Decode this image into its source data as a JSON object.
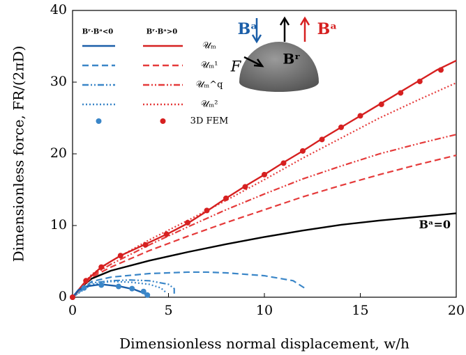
{
  "chart_data": {
    "type": "line",
    "xlabel": "Dimensionless normal displacement, w/h",
    "ylabel": "Dimensionless force, FR/(2πD)",
    "xlim": [
      0,
      20
    ],
    "ylim": [
      0,
      40
    ],
    "xticks": [
      0,
      5,
      10,
      15,
      20
    ],
    "yticks": [
      0,
      10,
      20,
      30,
      40
    ],
    "grid": false,
    "legend": {
      "position": "upper-left",
      "groups": [
        "Bʳ·Bᵃ<0",
        "Bʳ·Bᵃ>0"
      ]
    },
    "series": [
      {
        "name": "𝒰ₘ",
        "group": 1,
        "kind": "line",
        "style": "solid",
        "color": "#d62020",
        "x": [
          0,
          0.7,
          1.5,
          2.5,
          3.8,
          5,
          6,
          7,
          8,
          9,
          10,
          11,
          12,
          13,
          14,
          15,
          16,
          17,
          18,
          19,
          20
        ],
        "values": [
          0,
          2.3,
          4.2,
          5.8,
          7.4,
          8.9,
          10.3,
          12,
          13.8,
          15.5,
          17.1,
          18.8,
          20.4,
          22.1,
          23.7,
          25.3,
          26.9,
          28.5,
          30.1,
          31.7,
          33
        ]
      },
      {
        "name": "𝒰ₘ¹",
        "group": 1,
        "kind": "line",
        "style": "dashed",
        "color": "#e53a3a",
        "x": [
          0,
          1,
          2,
          4,
          6,
          8,
          10,
          12,
          14,
          16,
          18,
          20
        ],
        "values": [
          0,
          2.8,
          4.2,
          6.5,
          8.5,
          10.4,
          12.2,
          14,
          15.6,
          17.1,
          18.5,
          19.8
        ]
      },
      {
        "name": "𝒰ₘ^q",
        "group": 1,
        "kind": "line",
        "style": "dashdot",
        "color": "#e53a3a",
        "x": [
          0,
          1,
          2,
          4,
          6,
          8,
          10,
          12,
          14,
          16,
          18,
          20
        ],
        "values": [
          0,
          3,
          4.6,
          7.3,
          9.8,
          12.2,
          14.4,
          16.5,
          18.3,
          20,
          21.4,
          22.7
        ]
      },
      {
        "name": "𝒰ₘ²",
        "group": 1,
        "kind": "line",
        "style": "dotted",
        "color": "#e53a3a",
        "x": [
          0,
          1,
          2,
          4,
          6,
          8,
          10,
          12,
          14,
          16,
          18,
          20
        ],
        "values": [
          0,
          3.2,
          5,
          8,
          10.7,
          13.5,
          16.4,
          19.4,
          22.2,
          25,
          27.5,
          29.9
        ]
      },
      {
        "name": "3D FEM",
        "group": 1,
        "kind": "points",
        "color": "#d62020",
        "x": [
          0,
          0.7,
          1.5,
          2.5,
          3.8,
          4.9,
          6,
          7,
          8,
          9,
          10,
          11,
          12,
          13,
          14,
          15,
          16.1,
          17.1,
          18.1,
          19.2
        ],
        "values": [
          0,
          2.3,
          4.2,
          5.8,
          7.3,
          8.8,
          10.4,
          12.1,
          13.8,
          15.4,
          17.1,
          18.7,
          20.4,
          22,
          23.7,
          25.3,
          26.9,
          28.5,
          30.1,
          31.7
        ]
      },
      {
        "group": 0,
        "kind": "line",
        "style": "solid",
        "color": "#1a5ea8",
        "x": [
          0,
          0.3,
          0.7,
          1.5,
          2.5,
          3.2,
          3.7,
          3.9
        ],
        "values": [
          0,
          1,
          1.5,
          1.8,
          1.5,
          1.1,
          0.6,
          0.2
        ]
      },
      {
        "group": 0,
        "kind": "line",
        "style": "dashed",
        "color": "#3a86c8",
        "x": [
          0,
          1,
          2,
          4,
          6,
          7,
          8,
          10,
          11.5,
          12.2
        ],
        "values": [
          0,
          2.2,
          2.8,
          3.3,
          3.5,
          3.5,
          3.4,
          3,
          2.3,
          1.1
        ]
      },
      {
        "group": 0,
        "kind": "line",
        "style": "dashdot",
        "color": "#3a86c8",
        "x": [
          0,
          1,
          2,
          3,
          4,
          5,
          5.3,
          5.3
        ],
        "values": [
          0,
          2,
          2.3,
          2.4,
          2.3,
          1.8,
          1.2,
          0.5
        ]
      },
      {
        "group": 0,
        "kind": "line",
        "style": "dotted",
        "color": "#3a86c8",
        "x": [
          0,
          1,
          2,
          3,
          4,
          4.6,
          4.9
        ],
        "values": [
          0,
          1.8,
          2.2,
          2.1,
          1.8,
          1.3,
          0.6
        ]
      },
      {
        "group": 0,
        "kind": "points",
        "color": "#3a86c8",
        "x": [
          0,
          0.6,
          1.5,
          2.4,
          3.1,
          3.7,
          3.9
        ],
        "values": [
          0,
          1.3,
          1.7,
          1.5,
          1.2,
          0.8,
          0.3
        ]
      },
      {
        "name": "Bᵃ=𝟎",
        "group": 2,
        "kind": "line",
        "style": "solid",
        "color": "#000000",
        "x": [
          0,
          0.5,
          1,
          2,
          4,
          6,
          8,
          10,
          12,
          14,
          16,
          18,
          20
        ],
        "values": [
          0,
          1.5,
          2.6,
          3.7,
          5.1,
          6.3,
          7.4,
          8.4,
          9.3,
          10.1,
          10.7,
          11.2,
          11.7
        ]
      }
    ],
    "inset": {
      "blue_field": "Bᵃ",
      "red_field": "Bᵃ",
      "remanent": "Bʳ",
      "force": "F"
    }
  }
}
